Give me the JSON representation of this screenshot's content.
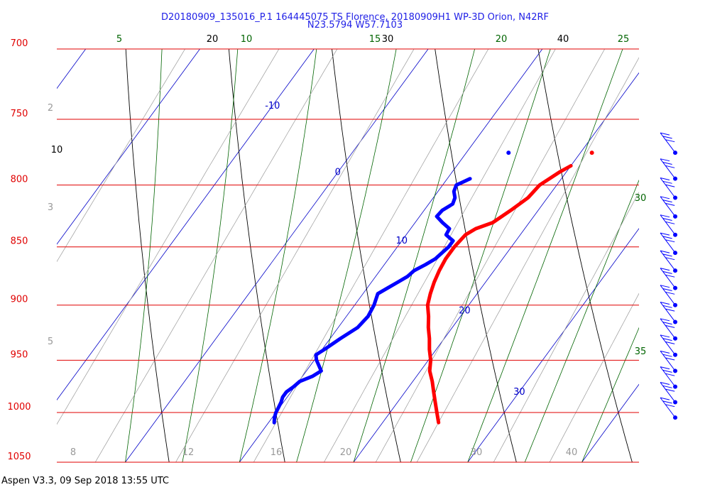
{
  "title_line1": "D20180909_135016_P.1 164445075 TS Florence, 20180909H1 WP-3D Orion, N42RF",
  "title_line2": "N23.5794 W57.7103",
  "footer": "Aspen V3.3, 09 Sep 2018  13:55 UTC",
  "colors": {
    "isobar": "#e00000",
    "temperature": "#ff0000",
    "dewpoint": "#0000ff",
    "dry_adiabat": "#000000",
    "moist_adiabat": "#006400",
    "isotherm": "#0000c8",
    "mixing_ratio": "#999999",
    "wind_barb": "#0000ff"
  },
  "chart_data": {
    "type": "line",
    "diagram": "skew-T log-p",
    "pressure_levels": [
      "700",
      "750",
      "800",
      "850",
      "900",
      "950",
      "1000",
      "1050"
    ],
    "isotherm_labels": [
      "-10",
      "0",
      "10",
      "20",
      "30"
    ],
    "dry_adiabat_labels": [
      "10",
      "20",
      "30",
      "40"
    ],
    "moist_adiabat_labels_top": [
      "5",
      "10",
      "15",
      "20",
      "25"
    ],
    "moist_adiabat_labels_right": [
      "30",
      "35"
    ],
    "mixing_ratio_labels_bottom": [
      "8",
      "12",
      "16",
      "20",
      "30",
      "40"
    ],
    "mixing_ratio_labels_left": [
      "2",
      "3",
      "5"
    ],
    "series": [
      {
        "name": "Temperature",
        "pressure": [
          785,
          790,
          800,
          810,
          820,
          830,
          835,
          840,
          850,
          860,
          870,
          880,
          890,
          900,
          910,
          920,
          930,
          940,
          950,
          960,
          970,
          980,
          990,
          1000,
          1005,
          1010
        ],
        "temp": [
          20.0,
          19.4,
          18.5,
          18.3,
          17.6,
          16.8,
          15.7,
          15.2,
          15.0,
          15.0,
          15.2,
          15.5,
          15.9,
          16.4,
          17.2,
          17.9,
          18.7,
          19.4,
          20.2,
          20.8,
          21.7,
          22.5,
          23.3,
          24.1,
          24.5,
          24.9
        ]
      },
      {
        "name": "Dewpoint",
        "pressure": [
          795,
          800,
          805,
          810,
          815,
          820,
          825,
          830,
          835,
          840,
          845,
          850,
          855,
          860,
          865,
          870,
          875,
          880,
          885,
          890,
          900,
          910,
          920,
          930,
          940,
          945,
          950,
          960,
          965,
          970,
          975,
          980,
          985,
          990,
          995,
          1000,
          1005,
          1010
        ],
        "temp": [
          12.0,
          11.2,
          11.4,
          11.9,
          12.1,
          11.6,
          11.5,
          12.4,
          13.4,
          13.5,
          14.5,
          14.5,
          14.3,
          14.1,
          13.6,
          13.0,
          12.8,
          12.3,
          11.8,
          11.3,
          11.7,
          11.9,
          11.7,
          10.9,
          10.2,
          9.8,
          10.2,
          11.3,
          10.9,
          10.1,
          9.9,
          9.6,
          9.6,
          9.8,
          9.9,
          10.0,
          10.2,
          10.5
        ]
      }
    ],
    "isolated_points": [
      {
        "name": "Temperature",
        "pressure": 775,
        "temp": 21.0
      },
      {
        "name": "Dewpoint",
        "pressure": 775,
        "temp": 13.7
      }
    ],
    "wind_barbs_pressure": [
      775,
      795,
      810,
      825,
      840,
      855,
      870,
      885,
      900,
      915,
      930,
      945,
      960,
      975,
      990,
      1005
    ],
    "xlim_temp_at_1050": [
      -6,
      45
    ],
    "ylim_pressure": [
      1050,
      700
    ],
    "y_scale": "log",
    "grid": true
  }
}
